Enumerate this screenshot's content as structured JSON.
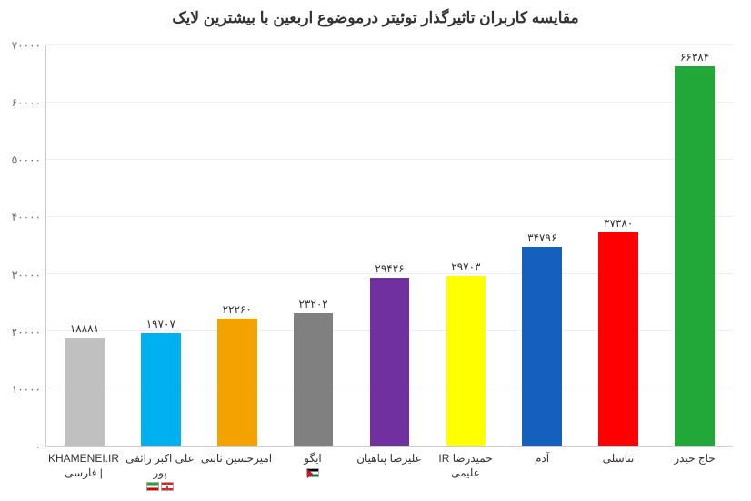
{
  "chart": {
    "type": "bar",
    "title": "مقایسه کاربران تاثیرگذار توئیتر درموضوع اربعین با بیشترین لایک",
    "title_fontsize": 17,
    "title_color": "#333333",
    "background_color": "#ffffff",
    "grid_color": "#eeeeee",
    "axis_color": "#cccccc",
    "value_label_fontsize": 12,
    "x_label_fontsize": 12,
    "label_color": "#333333",
    "ylim": [
      0,
      70000
    ],
    "ytick_step": 10000,
    "yticks": [
      {
        "value": 0,
        "label": "۰"
      },
      {
        "value": 10000,
        "label": "۱۰۰۰۰"
      },
      {
        "value": 20000,
        "label": "۲۰۰۰۰"
      },
      {
        "value": 30000,
        "label": "۳۰۰۰۰"
      },
      {
        "value": 40000,
        "label": "۴۰۰۰۰"
      },
      {
        "value": 50000,
        "label": "۵۰۰۰۰"
      },
      {
        "value": 60000,
        "label": "۶۰۰۰۰"
      },
      {
        "value": 70000,
        "label": "۷۰۰۰۰"
      }
    ],
    "bar_width_pct": 52,
    "data": [
      {
        "label": "حاج حیدر",
        "value": 66384,
        "value_label": "۶۶۳۸۴",
        "color": "#21a838",
        "icon": null
      },
      {
        "label": "تناسلی",
        "value": 37380,
        "value_label": "۳۷۳۸۰",
        "color": "#fe0000",
        "icon": null
      },
      {
        "label": "آدم",
        "value": 34796,
        "value_label": "۳۴۷۹۶",
        "color": "#1560bd",
        "icon": null
      },
      {
        "label": "حمیدرضا IR علیمی",
        "value": 29703,
        "value_label": "۲۹۷۰۳",
        "color": "#ffff00",
        "icon": null
      },
      {
        "label": "علیرضا پناهیان",
        "value": 29426,
        "value_label": "۲۹۴۲۶",
        "color": "#7030a0",
        "icon": null
      },
      {
        "label": "ایگو",
        "value": 23202,
        "value_label": "۲۳۲۰۲",
        "color": "#808080",
        "icon": "flag-ps"
      },
      {
        "label": "امیرحسین ثابتی",
        "value": 22260,
        "value_label": "۲۲۲۶۰",
        "color": "#f3a200",
        "icon": null
      },
      {
        "label": "علی اکبر رائفی پور",
        "value": 19707,
        "value_label": "۱۹۷۰۷",
        "color": "#00b0f0",
        "icon": "flag-lb-ir"
      },
      {
        "label": "KHAMENEI.IR | فارسی",
        "value": 18881,
        "value_label": "۱۸۸۸۱",
        "color": "#c0c0c0",
        "icon": null
      }
    ]
  }
}
